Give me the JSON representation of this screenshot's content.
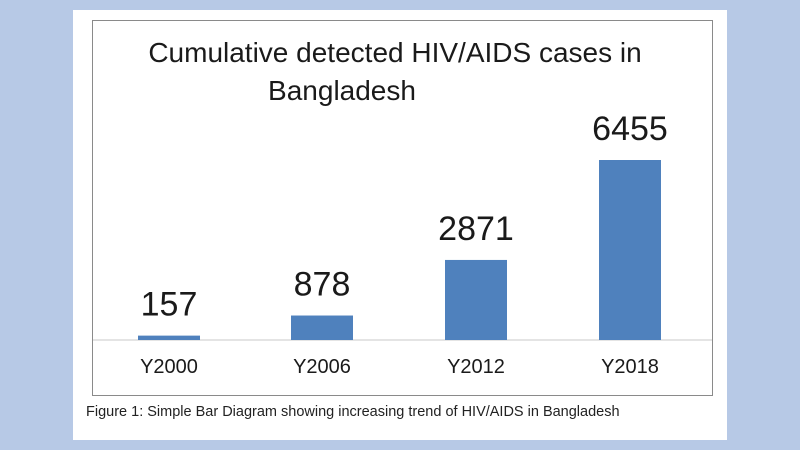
{
  "chart_data": {
    "type": "bar",
    "title_lines": [
      "Cumulative detected HIV/AIDS cases in",
      "Bangladesh"
    ],
    "categories": [
      "Y2000",
      "Y2006",
      "Y2012",
      "Y2018"
    ],
    "values": [
      157,
      878,
      2871,
      6455
    ],
    "data_labels": [
      "157",
      "878",
      "2871",
      "6455"
    ],
    "xlabel": "",
    "ylabel": "",
    "ylim": [
      0,
      6455
    ],
    "grid": false,
    "legend": "none",
    "bar_color": "#4f81bd"
  },
  "caption": "Figure 1: Simple Bar Diagram showing increasing trend of HIV/AIDS in Bangladesh"
}
